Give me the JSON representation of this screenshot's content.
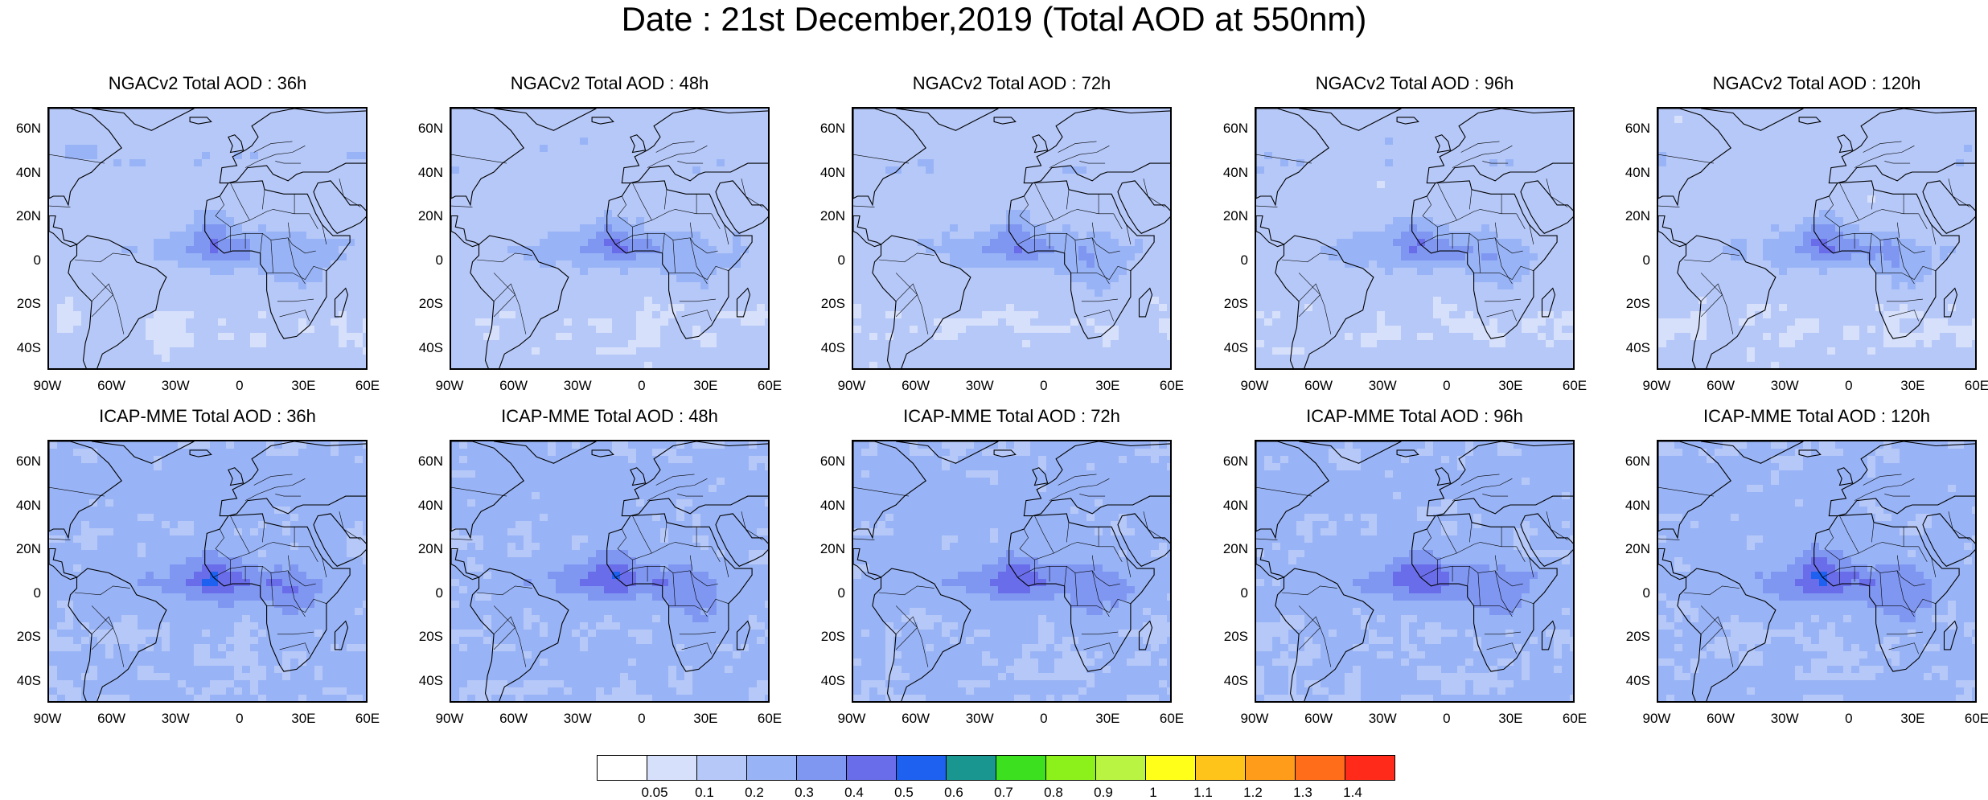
{
  "figure": {
    "title": "Date : 21st December,2019 (Total AOD at 550nm)"
  },
  "panels": [
    {
      "title": "NGACv2 Total AOD : 36h",
      "model": "NGACv2",
      "lead": "36h"
    },
    {
      "title": "NGACv2 Total AOD : 48h",
      "model": "NGACv2",
      "lead": "48h"
    },
    {
      "title": "NGACv2 Total AOD : 72h",
      "model": "NGACv2",
      "lead": "72h"
    },
    {
      "title": "NGACv2 Total AOD : 96h",
      "model": "NGACv2",
      "lead": "96h"
    },
    {
      "title": "NGACv2 Total AOD : 120h",
      "model": "NGACv2",
      "lead": "120h"
    },
    {
      "title": "ICAP-MME Total AOD : 36h",
      "model": "ICAP-MME",
      "lead": "36h"
    },
    {
      "title": "ICAP-MME Total AOD : 48h",
      "model": "ICAP-MME",
      "lead": "48h"
    },
    {
      "title": "ICAP-MME Total AOD : 72h",
      "model": "ICAP-MME",
      "lead": "72h"
    },
    {
      "title": "ICAP-MME Total AOD : 96h",
      "model": "ICAP-MME",
      "lead": "96h"
    },
    {
      "title": "ICAP-MME Total AOD : 120h",
      "model": "ICAP-MME",
      "lead": "120h"
    }
  ],
  "axes": {
    "lon_range": [
      -90,
      60
    ],
    "lat_range": [
      -50,
      70
    ],
    "lon_ticks": [
      "90W",
      "60W",
      "30W",
      "0",
      "30E",
      "60E"
    ],
    "lat_ticks": [
      "60N",
      "40N",
      "20N",
      "0",
      "20S",
      "40S"
    ]
  },
  "colorbar": {
    "labels": [
      "0.05",
      "0.1",
      "0.2",
      "0.3",
      "0.4",
      "0.5",
      "0.6",
      "0.7",
      "0.8",
      "0.9",
      "1",
      "1.1",
      "1.2",
      "1.3",
      "1.4"
    ],
    "colors": [
      "#ffffff",
      "#d6e0fb",
      "#b6c8f8",
      "#99b4f6",
      "#8097f2",
      "#6a6de9",
      "#1e60f0",
      "#1a9690",
      "#3ce01e",
      "#8cf11a",
      "#b9f442",
      "#ffff1a",
      "#ffc41a",
      "#ff9c1a",
      "#ff6d1a",
      "#ff2a1a"
    ]
  }
}
